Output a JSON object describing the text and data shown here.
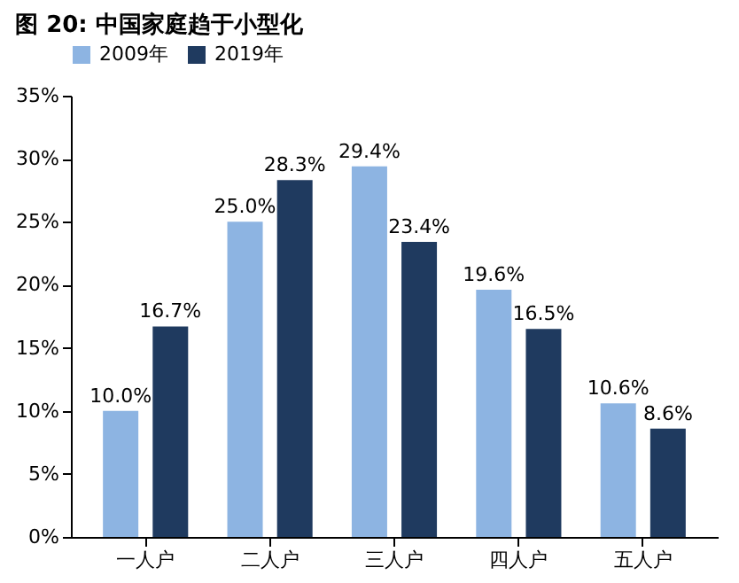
{
  "chart_data": {
    "type": "bar",
    "title": "图 20:  中国家庭趋于小型化",
    "categories": [
      "一人户",
      "二人户",
      "三人户",
      "四人户",
      "五人户"
    ],
    "series": [
      {
        "name": "2009年",
        "color": "#8db4e2",
        "values": [
          10.0,
          25.0,
          29.4,
          19.6,
          10.6
        ],
        "value_labels": [
          "10.0%",
          "25.0%",
          "29.4%",
          "19.6%",
          "10.6%"
        ]
      },
      {
        "name": "2019年",
        "color": "#1f3a5f",
        "values": [
          16.7,
          28.3,
          23.4,
          16.5,
          8.6
        ],
        "value_labels": [
          "16.7%",
          "28.3%",
          "23.4%",
          "16.5%",
          "8.6%"
        ]
      }
    ],
    "ylim": [
      0,
      35
    ],
    "yticks": [
      {
        "value": 0,
        "label": "0%"
      },
      {
        "value": 5,
        "label": "5%"
      },
      {
        "value": 10,
        "label": "10%"
      },
      {
        "value": 15,
        "label": "15%"
      },
      {
        "value": 20,
        "label": "20%"
      },
      {
        "value": 25,
        "label": "25%"
      },
      {
        "value": 30,
        "label": "30%"
      },
      {
        "value": 35,
        "label": "35%"
      }
    ],
    "grid": false,
    "legend": "top"
  }
}
